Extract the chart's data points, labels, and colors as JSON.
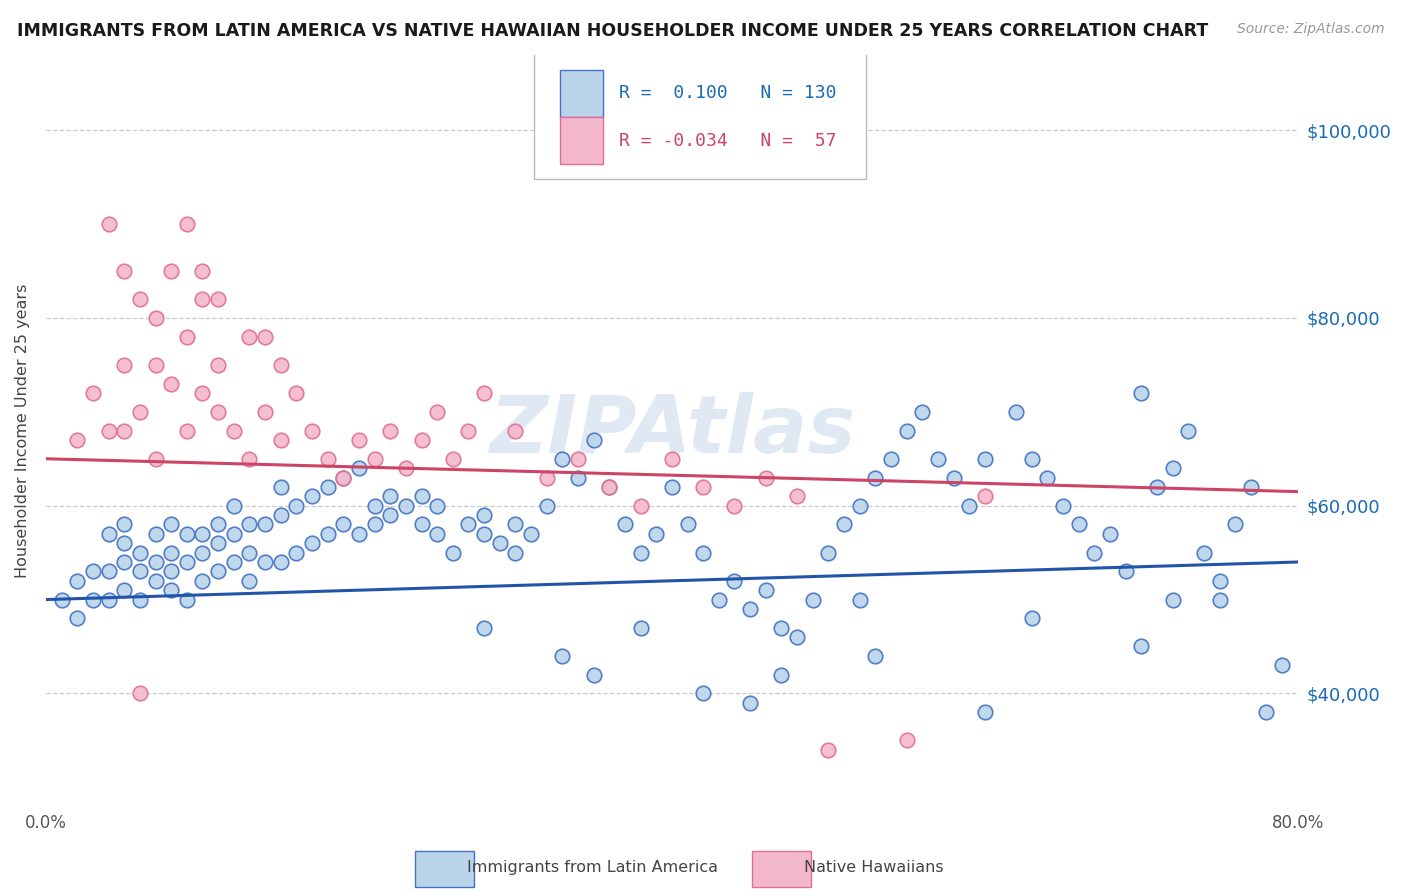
{
  "title": "IMMIGRANTS FROM LATIN AMERICA VS NATIVE HAWAIIAN HOUSEHOLDER INCOME UNDER 25 YEARS CORRELATION CHART",
  "source": "Source: ZipAtlas.com",
  "ylabel": "Householder Income Under 25 years",
  "r_blue": 0.1,
  "n_blue": 130,
  "r_pink": -0.034,
  "n_pink": 57,
  "xlim": [
    0.0,
    0.8
  ],
  "ylim": [
    28000,
    108000
  ],
  "yticks": [
    40000,
    60000,
    80000,
    100000
  ],
  "ytick_labels": [
    "$40,000",
    "$60,000",
    "$80,000",
    "$100,000"
  ],
  "xticks": [
    0.0,
    0.1,
    0.2,
    0.3,
    0.4,
    0.5,
    0.6,
    0.7,
    0.8
  ],
  "xtick_labels": [
    "0.0%",
    "",
    "",
    "",
    "",
    "",
    "",
    "",
    "80.0%"
  ],
  "blue_face_color": "#bad4ea",
  "blue_edge_color": "#4472c4",
  "pink_face_color": "#f4b8cc",
  "pink_edge_color": "#e07090",
  "blue_line_color": "#2255aa",
  "pink_line_color": "#cc4466",
  "watermark": "ZIPAtlas",
  "legend_label_blue": "Immigrants from Latin America",
  "legend_label_pink": "Native Hawaiians",
  "blue_x": [
    0.01,
    0.02,
    0.02,
    0.03,
    0.03,
    0.04,
    0.04,
    0.04,
    0.05,
    0.05,
    0.05,
    0.05,
    0.06,
    0.06,
    0.06,
    0.07,
    0.07,
    0.07,
    0.08,
    0.08,
    0.08,
    0.08,
    0.09,
    0.09,
    0.09,
    0.1,
    0.1,
    0.1,
    0.11,
    0.11,
    0.11,
    0.12,
    0.12,
    0.12,
    0.13,
    0.13,
    0.13,
    0.14,
    0.14,
    0.15,
    0.15,
    0.15,
    0.16,
    0.16,
    0.17,
    0.17,
    0.18,
    0.18,
    0.19,
    0.19,
    0.2,
    0.2,
    0.21,
    0.21,
    0.22,
    0.22,
    0.23,
    0.24,
    0.24,
    0.25,
    0.25,
    0.26,
    0.27,
    0.28,
    0.28,
    0.29,
    0.3,
    0.3,
    0.31,
    0.32,
    0.33,
    0.34,
    0.35,
    0.36,
    0.37,
    0.38,
    0.39,
    0.4,
    0.41,
    0.42,
    0.43,
    0.44,
    0.45,
    0.46,
    0.47,
    0.48,
    0.49,
    0.5,
    0.51,
    0.52,
    0.53,
    0.54,
    0.55,
    0.56,
    0.57,
    0.58,
    0.59,
    0.6,
    0.62,
    0.63,
    0.64,
    0.65,
    0.66,
    0.67,
    0.68,
    0.69,
    0.7,
    0.71,
    0.72,
    0.73,
    0.74,
    0.75,
    0.76,
    0.77,
    0.78,
    0.79,
    0.63,
    0.7,
    0.72,
    0.75,
    0.52,
    0.47,
    0.53,
    0.6,
    0.35,
    0.42,
    0.28,
    0.33,
    0.38,
    0.45
  ],
  "blue_y": [
    50000,
    48000,
    52000,
    50000,
    53000,
    50000,
    53000,
    57000,
    51000,
    54000,
    56000,
    58000,
    50000,
    53000,
    55000,
    52000,
    54000,
    57000,
    51000,
    53000,
    55000,
    58000,
    50000,
    54000,
    57000,
    52000,
    55000,
    57000,
    53000,
    56000,
    58000,
    54000,
    57000,
    60000,
    52000,
    55000,
    58000,
    54000,
    58000,
    54000,
    59000,
    62000,
    55000,
    60000,
    56000,
    61000,
    57000,
    62000,
    58000,
    63000,
    57000,
    64000,
    58000,
    60000,
    59000,
    61000,
    60000,
    61000,
    58000,
    57000,
    60000,
    55000,
    58000,
    57000,
    59000,
    56000,
    58000,
    55000,
    57000,
    60000,
    65000,
    63000,
    67000,
    62000,
    58000,
    55000,
    57000,
    62000,
    58000,
    55000,
    50000,
    52000,
    49000,
    51000,
    47000,
    46000,
    50000,
    55000,
    58000,
    60000,
    63000,
    65000,
    68000,
    70000,
    65000,
    63000,
    60000,
    65000,
    70000,
    65000,
    63000,
    60000,
    58000,
    55000,
    57000,
    53000,
    72000,
    62000,
    64000,
    68000,
    55000,
    50000,
    58000,
    62000,
    38000,
    43000,
    48000,
    45000,
    50000,
    52000,
    50000,
    42000,
    44000,
    38000,
    42000,
    40000,
    47000,
    44000,
    47000,
    39000
  ],
  "pink_x": [
    0.02,
    0.03,
    0.04,
    0.04,
    0.05,
    0.05,
    0.06,
    0.06,
    0.07,
    0.07,
    0.08,
    0.08,
    0.09,
    0.09,
    0.1,
    0.1,
    0.11,
    0.11,
    0.12,
    0.13,
    0.14,
    0.14,
    0.15,
    0.15,
    0.16,
    0.17,
    0.18,
    0.19,
    0.2,
    0.21,
    0.22,
    0.23,
    0.24,
    0.25,
    0.26,
    0.27,
    0.28,
    0.3,
    0.32,
    0.34,
    0.36,
    0.38,
    0.4,
    0.42,
    0.44,
    0.46,
    0.48,
    0.5,
    0.55,
    0.6,
    0.09,
    0.1,
    0.11,
    0.13,
    0.05,
    0.06,
    0.07
  ],
  "pink_y": [
    67000,
    72000,
    68000,
    90000,
    75000,
    85000,
    70000,
    82000,
    65000,
    80000,
    73000,
    85000,
    68000,
    78000,
    72000,
    82000,
    70000,
    75000,
    68000,
    65000,
    70000,
    78000,
    67000,
    75000,
    72000,
    68000,
    65000,
    63000,
    67000,
    65000,
    68000,
    64000,
    67000,
    70000,
    65000,
    68000,
    72000,
    68000,
    63000,
    65000,
    62000,
    60000,
    65000,
    62000,
    60000,
    63000,
    61000,
    34000,
    35000,
    61000,
    90000,
    85000,
    82000,
    78000,
    68000,
    40000,
    75000
  ]
}
